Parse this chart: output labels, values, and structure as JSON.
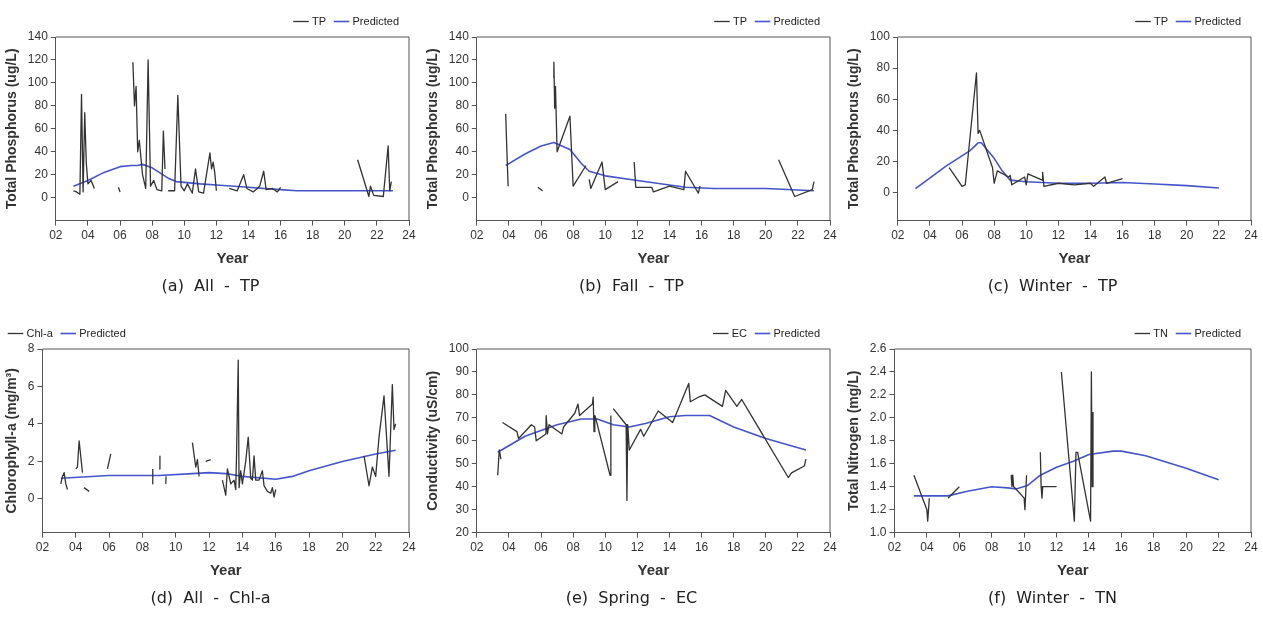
{
  "chart_data": [
    {
      "type": "line",
      "title": "(a)  All  -  TP",
      "xlabel": "Year",
      "ylabel": "Total Phosphorus (ug/L)",
      "xlim": [
        2,
        24
      ],
      "xticks": [
        {
          "value": 2,
          "label": "02"
        },
        {
          "value": 4,
          "label": "04"
        },
        {
          "value": 6,
          "label": "06"
        },
        {
          "value": 8,
          "label": "08"
        },
        10,
        12,
        14,
        16,
        18,
        20,
        22,
        24
      ],
      "ylim": [
        -20,
        140
      ],
      "yticks": [
        0,
        20,
        40,
        60,
        80,
        100,
        120,
        140
      ],
      "legend": "top right",
      "marker": "none",
      "line_style": "solid",
      "series": [
        {
          "name": "TP",
          "color": "#333333",
          "x": [
            3.1,
            3.3,
            3.5,
            3.6,
            3.7,
            3.8,
            3.9,
            4.0,
            4.2,
            4.4,
            5.0,
            5.9,
            6.0,
            6.4,
            6.8,
            6.9,
            7.0,
            7.1,
            7.2,
            7.4,
            7.6,
            7.75,
            7.9,
            8.1,
            8.3,
            8.6,
            8.7,
            8.8,
            8.9,
            9.0,
            9.4,
            9.6,
            9.8,
            10.0,
            10.2,
            10.5,
            10.7,
            10.9,
            11.2,
            11.6,
            11.7,
            11.8,
            11.9,
            12.0,
            12.4,
            12.8,
            13.3,
            13.7,
            13.9,
            14.3,
            14.7,
            14.95,
            15.1,
            15.5,
            15.8,
            16.0,
            18.0,
            20.8,
            21.5,
            21.6,
            21.8,
            22.4,
            22.7,
            22.8,
            22.9
          ],
          "values": [
            6,
            5,
            3,
            90,
            5,
            74,
            30,
            12,
            15,
            8,
            null,
            9,
            5,
            null,
            118,
            80,
            97,
            40,
            50,
            20,
            8,
            120,
            10,
            15,
            7,
            6,
            58,
            25,
            null,
            6,
            6,
            89,
            10,
            6,
            12,
            4,
            25,
            5,
            4,
            39,
            25,
            31,
            22,
            6,
            null,
            8,
            6,
            20,
            8,
            5,
            10,
            23,
            7,
            8,
            5,
            9,
            null,
            33,
            1,
            10,
            2,
            1,
            45,
            6,
            14
          ]
        },
        {
          "name": "Predicted",
          "color": "#4455cc",
          "x": [
            3.1,
            4,
            5,
            6,
            6.7,
            7.1,
            7.4,
            8,
            9,
            9.5,
            11,
            12,
            14,
            16,
            17,
            20,
            23
          ],
          "values": [
            10,
            15,
            22,
            27,
            28,
            28,
            29,
            26,
            17,
            14,
            12,
            11,
            9,
            7,
            6,
            6,
            6
          ]
        }
      ]
    },
    {
      "type": "line",
      "title": "(b)  Fall  -  TP",
      "xlabel": "Year",
      "ylabel": "Total Phosphorus (ug/L)",
      "xlim": [
        2,
        24
      ],
      "xticks": [
        {
          "value": 2,
          "label": "02"
        },
        {
          "value": 4,
          "label": "04"
        },
        {
          "value": 6,
          "label": "06"
        },
        {
          "value": 8,
          "label": "08"
        },
        10,
        12,
        14,
        16,
        18,
        20,
        22,
        24
      ],
      "ylim": [
        -20,
        140
      ],
      "yticks": [
        0,
        20,
        40,
        60,
        80,
        100,
        120,
        140
      ],
      "legend": "top right",
      "marker": "none",
      "line_style": "solid",
      "series": [
        {
          "name": "TP",
          "color": "#333333",
          "x": [
            3.8,
            3.85,
            3.95,
            5.0,
            5.8,
            6.1,
            6.4,
            6.75,
            6.8,
            6.85,
            6.9,
            7.0,
            7.8,
            8.0,
            8.8,
            8.9,
            9.0,
            9.1,
            9.8,
            10.0,
            10.8,
            11.3,
            11.8,
            11.9,
            12.9,
            13.0,
            14.0,
            14.9,
            15.0,
            15.8,
            15.9,
            18.0,
            20.8,
            21.8,
            22.9,
            23.0
          ],
          "values": [
            73,
            50,
            10,
            null,
            9,
            6,
            null,
            105,
            118,
            78,
            97,
            40,
            71,
            10,
            28,
            null,
            16,
            8,
            31,
            7,
            14,
            null,
            31,
            9,
            9,
            5,
            10,
            7,
            23,
            4,
            10,
            null,
            33,
            1,
            7,
            14
          ]
        },
        {
          "name": "Predicted",
          "color": "#4455cc",
          "x": [
            3.8,
            5,
            6,
            6.8,
            7.8,
            8.5,
            9,
            10,
            12,
            14,
            15,
            16.8,
            20,
            23
          ],
          "values": [
            28,
            38,
            45,
            48,
            42,
            30,
            23,
            19,
            15,
            11,
            9,
            8,
            8,
            6
          ]
        }
      ]
    },
    {
      "type": "line",
      "title": "(c)  Winter  -  TP",
      "xlabel": "Year",
      "ylabel": "Total Phosphorus (ug/L)",
      "xlim": [
        2,
        24
      ],
      "xticks": [
        {
          "value": 2,
          "label": "02"
        },
        {
          "value": 4,
          "label": "04"
        },
        {
          "value": 6,
          "label": "06"
        },
        {
          "value": 8,
          "label": "08"
        },
        10,
        12,
        14,
        16,
        18,
        20,
        22,
        24
      ],
      "ylim": [
        -18,
        100
      ],
      "yticks": [
        0,
        20,
        40,
        60,
        80,
        100
      ],
      "legend": "top right",
      "marker": "none",
      "line_style": "solid",
      "series": [
        {
          "name": "TP",
          "color": "#333333",
          "x": [
            5.2,
            6.0,
            6.2,
            6.9,
            7.0,
            7.1,
            7.9,
            8.0,
            8.2,
            8.9,
            9.0,
            9.1,
            9.9,
            10.0,
            10.1,
            11.0,
            11.02,
            11.1,
            12.0,
            13.0,
            14.0,
            14.2,
            14.9,
            15.0,
            16.0
          ],
          "values": [
            16,
            4,
            5,
            77,
            38,
            40,
            16,
            6,
            14,
            10,
            11,
            5,
            10,
            5,
            12,
            8,
            13,
            4,
            6,
            5,
            6,
            4,
            10,
            6,
            9
          ]
        },
        {
          "name": "Predicted",
          "color": "#4455cc",
          "x": [
            3.1,
            5,
            6.5,
            7.0,
            7.2,
            8.0,
            8.5,
            9.0,
            10,
            12,
            14,
            16,
            18,
            20,
            22
          ],
          "values": [
            2.5,
            17,
            27,
            32,
            32,
            22,
            14,
            8,
            7,
            6,
            6,
            6.5,
            5.5,
            4.5,
            3
          ]
        }
      ]
    },
    {
      "type": "line",
      "title": "(d)  All  -  Chl-a",
      "xlabel": "Year",
      "ylabel": "Chlorophyll-a (mg/m³)",
      "xlim": [
        2,
        24
      ],
      "xticks": [
        {
          "value": 2,
          "label": "02"
        },
        {
          "value": 4,
          "label": "04"
        },
        {
          "value": 6,
          "label": "06"
        },
        {
          "value": 8,
          "label": "08"
        },
        10,
        12,
        14,
        16,
        18,
        20,
        22,
        24
      ],
      "ylim": [
        -1.8,
        8
      ],
      "yticks": [
        0,
        2,
        4,
        6,
        8
      ],
      "legend": "top left",
      "marker": "none",
      "line_style": "solid",
      "series": [
        {
          "name": "Chl-a",
          "color": "#333333",
          "x": [
            3.1,
            3.2,
            3.3,
            3.4,
            3.5,
            3.8,
            4.0,
            4.1,
            4.2,
            4.4,
            4.45,
            4.5,
            4.8,
            5.3,
            5.9,
            6.1,
            7.5,
            8.6,
            8.62,
            8.8,
            9.0,
            9.05,
            9.2,
            9.4,
            9.42,
            10.2,
            11.0,
            11.2,
            11.3,
            11.4,
            11.6,
            11.8,
            12.1,
            12.4,
            12.8,
            13.0,
            13.1,
            13.3,
            13.5,
            13.6,
            13.65,
            13.75,
            13.8,
            13.9,
            14.0,
            14.2,
            14.35,
            14.5,
            14.6,
            14.7,
            14.8,
            15.0,
            15.2,
            15.3,
            15.5,
            15.7,
            15.8,
            15.9,
            16.0,
            18.5,
            21.3,
            21.6,
            21.8,
            22.0,
            22.2,
            22.5,
            22.8,
            23.0,
            23.1,
            23.2
          ],
          "values": [
            0.8,
            1.2,
            1.4,
            0.8,
            0.5,
            null,
            1.6,
            1.7,
            3.1,
            1.4,
            null,
            0.6,
            0.4,
            null,
            1.6,
            2.4,
            null,
            0.8,
            1.6,
            null,
            1.6,
            2.3,
            null,
            0.8,
            1.2,
            null,
            3.0,
            1.7,
            2.1,
            1.2,
            null,
            2.0,
            2.1,
            null,
            1.0,
            0.2,
            1.6,
            0.8,
            1.0,
            0.5,
            2.4,
            7.4,
            0.6,
            1.5,
            0.8,
            2.0,
            3.3,
            1.1,
            1.0,
            2.3,
            1.0,
            1.0,
            1.5,
            0.7,
            0.4,
            0.3,
            0.6,
            0.1,
            0.5,
            null,
            2.3,
            0.7,
            1.7,
            1.2,
            3.3,
            5.5,
            1.2,
            6.1,
            3.7,
            4.0
          ]
        },
        {
          "name": "Predicted",
          "color": "#4455cc",
          "x": [
            3.1,
            6,
            9,
            11,
            12,
            13,
            14,
            16,
            17,
            18,
            20,
            22,
            23.2
          ],
          "values": [
            1.1,
            1.25,
            1.25,
            1.35,
            1.4,
            1.35,
            1.2,
            1.05,
            1.2,
            1.5,
            2.0,
            2.4,
            2.6
          ]
        }
      ]
    },
    {
      "type": "line",
      "title": "(e)  Spring  -  EC",
      "xlabel": "Year",
      "ylabel": "Conductivity (uS/cm)",
      "xlim": [
        2,
        24
      ],
      "xticks": [
        {
          "value": 2,
          "label": "02"
        },
        {
          "value": 4,
          "label": "04"
        },
        {
          "value": 6,
          "label": "06"
        },
        {
          "value": 8,
          "label": "08"
        },
        10,
        12,
        14,
        16,
        18,
        20,
        22,
        24
      ],
      "ylim": [
        20,
        100
      ],
      "yticks": [
        20,
        30,
        40,
        50,
        60,
        70,
        80,
        90,
        100
      ],
      "legend": "top right",
      "marker": "none",
      "line_style": "solid",
      "series": [
        {
          "name": "EC",
          "color": "#333333",
          "x": [
            3.3,
            3.4,
            3.5,
            3.55,
            3.6,
            4.5,
            4.6,
            5.4,
            5.6,
            5.7,
            6.3,
            6.32,
            6.4,
            6.5,
            7.3,
            7.4,
            8.1,
            8.3,
            8.4,
            9.2,
            9.25,
            9.3,
            9.35,
            9.4,
            10.3,
            10.35,
            10.42,
            10.5,
            11.3,
            11.35,
            11.4,
            11.5,
            12.2,
            12.4,
            13.3,
            14.2,
            15.2,
            15.3,
            15.8,
            16.2,
            17.3,
            17.5,
            18.2,
            18.5,
            21.4,
            21.6,
            22.4,
            22.5
          ],
          "values": [
            45,
            56,
            52,
            null,
            68,
            64,
            61,
            67,
            66,
            60,
            63,
            71,
            63,
            67,
            63,
            66,
            72,
            76,
            71,
            76,
            79,
            64,
            71,
            70,
            45,
            71,
            null,
            74,
            67,
            34,
            67,
            56,
            65,
            62,
            73,
            68,
            85,
            77,
            79,
            80,
            75,
            82,
            75,
            78,
            44,
            46,
            49,
            52
          ]
        },
        {
          "name": "Predicted",
          "color": "#4455cc",
          "x": [
            3.3,
            5,
            7,
            8.5,
            9.5,
            10.5,
            11.5,
            12.5,
            14,
            15,
            16.5,
            18,
            20,
            22.5
          ],
          "values": [
            55,
            62,
            67,
            69.5,
            69.5,
            67,
            66,
            67.5,
            70.5,
            71,
            71,
            66,
            61,
            56
          ]
        }
      ]
    },
    {
      "type": "line",
      "title": "(f)  Winter  -  TN",
      "xlabel": "Year",
      "ylabel": "Total Nitrogen (mg/L)",
      "xlim": [
        2,
        24
      ],
      "xticks": [
        {
          "value": 2,
          "label": "02"
        },
        {
          "value": 4,
          "label": "04"
        },
        {
          "value": 6,
          "label": "06"
        },
        {
          "value": 8,
          "label": "08"
        },
        10,
        12,
        14,
        16,
        18,
        20,
        22,
        24
      ],
      "ylim": [
        1.0,
        2.6
      ],
      "yticks": [
        {
          "value": 1.0,
          "label": "1.0"
        },
        1.2,
        1.4,
        1.6,
        1.8,
        {
          "value": 2.0,
          "label": "2.0"
        },
        2.2,
        2.4,
        2.6
      ],
      "legend": "top right",
      "marker": "none",
      "line_style": "solid",
      "series": [
        {
          "name": "TN",
          "color": "#333333",
          "x": [
            3.2,
            4.0,
            4.05,
            4.1,
            4.15,
            4.7,
            5.3,
            6.0,
            7.5,
            9.2,
            9.25,
            9.3,
            9.35,
            9.5,
            10.0,
            10.05,
            10.15,
            10.6,
            11.0,
            11.05,
            11.1,
            11.15,
            12.0,
            12.15,
            12.3,
            13.1,
            13.2,
            13.3,
            14.1,
            14.15,
            14.2,
            14.25
          ],
          "values": [
            1.5,
            1.2,
            1.1,
            1.2,
            1.3,
            null,
            1.3,
            1.4,
            null,
            1.5,
            1.4,
            1.5,
            1.4,
            1.38,
            1.3,
            1.2,
            1.5,
            null,
            1.7,
            1.4,
            1.3,
            1.4,
            1.4,
            null,
            2.4,
            1.1,
            1.7,
            1.7,
            1.1,
            2.4,
            1.4,
            2.05
          ]
        },
        {
          "name": "Predicted",
          "color": "#4455cc",
          "x": [
            3.2,
            5.3,
            6.5,
            8,
            9,
            9.5,
            10.2,
            11,
            12,
            13,
            14,
            15.5,
            16,
            17.5,
            20,
            22
          ],
          "values": [
            1.32,
            1.32,
            1.36,
            1.4,
            1.39,
            1.38,
            1.41,
            1.5,
            1.57,
            1.62,
            1.68,
            1.71,
            1.71,
            1.67,
            1.56,
            1.46
          ]
        }
      ]
    }
  ]
}
